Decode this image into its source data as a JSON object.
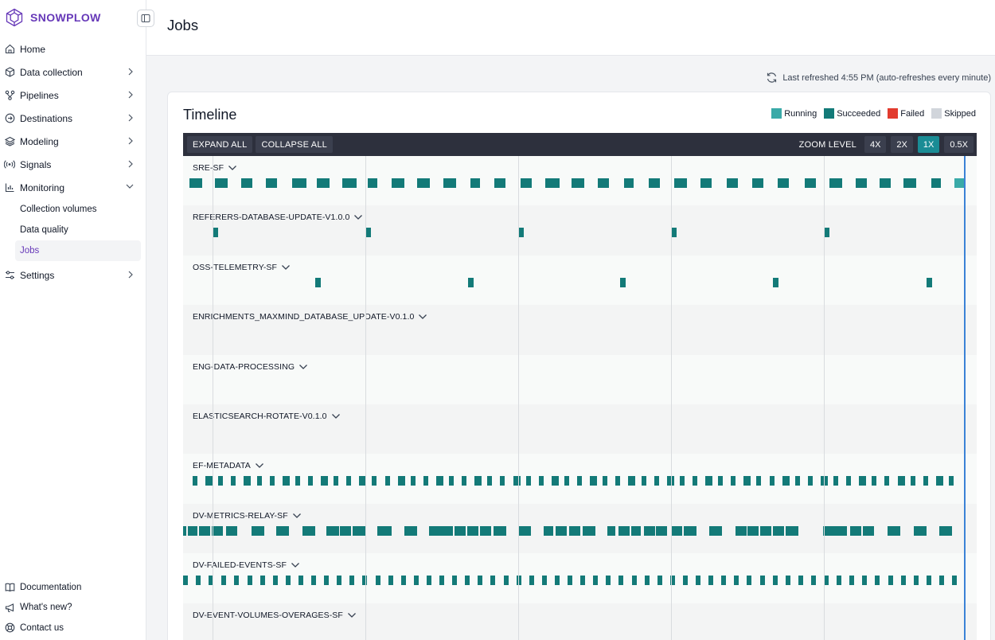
{
  "brand": {
    "name": "SNOWPLOW",
    "color": "#6638b8"
  },
  "nav": {
    "items": [
      {
        "label": "Home",
        "icon": "home-icon",
        "chevron": ""
      },
      {
        "label": "Data collection",
        "icon": "cube-icon",
        "chevron": "right"
      },
      {
        "label": "Pipelines",
        "icon": "pipeline-icon",
        "chevron": "right"
      },
      {
        "label": "Destinations",
        "icon": "destination-icon",
        "chevron": "right"
      },
      {
        "label": "Modeling",
        "icon": "layers-icon",
        "chevron": "right"
      },
      {
        "label": "Signals",
        "icon": "signal-icon",
        "chevron": "right"
      },
      {
        "label": "Monitoring",
        "icon": "chart-icon",
        "chevron": "down"
      }
    ],
    "monitoring_sub": [
      "Collection volumes",
      "Data quality",
      "Jobs"
    ],
    "settings": {
      "label": "Settings",
      "icon": "settings-icon"
    },
    "bottom": [
      {
        "label": "Documentation",
        "icon": "book-icon"
      },
      {
        "label": "What's new?",
        "icon": "megaphone-icon"
      },
      {
        "label": "Contact us",
        "icon": "help-icon"
      }
    ]
  },
  "header": {
    "title": "Jobs"
  },
  "refresh": {
    "text": "Last refreshed 4:55 PM (auto-refreshes every minute)"
  },
  "timeline": {
    "title": "Timeline",
    "legend": [
      {
        "label": "Running",
        "color": "#3aaaa8"
      },
      {
        "label": "Succeeded",
        "color": "#137a78"
      },
      {
        "label": "Failed",
        "color": "#e23b2e"
      },
      {
        "label": "Skipped",
        "color": "#d1d5db"
      }
    ],
    "toolbar": {
      "expand_all": "EXPAND ALL",
      "collapse_all": "COLLAPSE ALL",
      "zoom_label": "ZOOM LEVEL",
      "zoom_options": [
        "4X",
        "2X",
        "1X",
        "0.5X"
      ],
      "zoom_selected": "1X"
    },
    "jobs": [
      "SRE-SF",
      "REFERERS-DATABASE-UPDATE-V1.0.0",
      "OSS-TELEMETRY-SF",
      "ENRICHMENTS_MAXMIND_DATABASE_UPDATE-V0.1.0",
      "ENG-DATA-PROCESSING",
      "ELASTICSEARCH-ROTATE-V0.1.0",
      "EF-METADATA",
      "DV-METRICS-RELAY-SF",
      "DV-FAILED-EVENTS-SF",
      "DV-EVENT-VOLUMES-OVERAGES-SF"
    ]
  }
}
